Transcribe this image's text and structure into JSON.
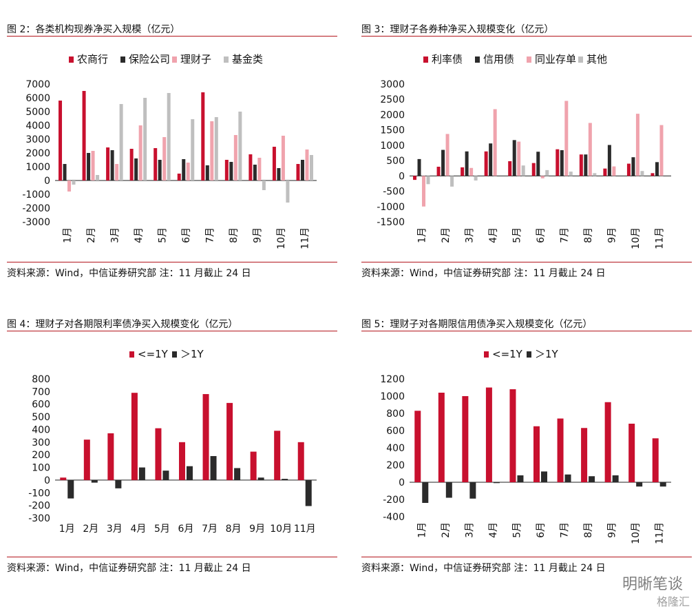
{
  "panels": [
    {
      "title": "图 2：各类机构现券净买入规模（亿元）",
      "source": "资料来源：Wind，中信证券研究部 注：11 月截止 24 日",
      "tick_rotate": true
    },
    {
      "title": "图 3：理财子各券种净买入规模变化（亿元）",
      "source": "资料来源：Wind，中信证券研究部 注：11 月截止 24 日",
      "tick_rotate": true
    },
    {
      "title": "图 4：理财子对各期限利率债净买入规模变化（亿元）",
      "source": "资料来源：Wind，中信证券研究部 注：11 月截止 24 日",
      "tick_rotate": false
    },
    {
      "title": "图 5：理财子对各期限信用债净买入规模变化（亿元）",
      "source": "资料来源：Wind，中信证券研究部 注：11 月截止 24 日",
      "tick_rotate": true
    }
  ],
  "chart_data": [
    {
      "type": "bar",
      "categories": [
        "1月",
        "2月",
        "3月",
        "4月",
        "5月",
        "6月",
        "7月",
        "8月",
        "9月",
        "10月",
        "11月"
      ],
      "series": [
        {
          "name": "农商行",
          "color": "#c8102e",
          "values": [
            5800,
            6500,
            2400,
            2300,
            2350,
            500,
            6400,
            1500,
            1900,
            2450,
            1200
          ]
        },
        {
          "name": "保险公司",
          "color": "#2b2b2b",
          "values": [
            1200,
            2000,
            2200,
            1600,
            1500,
            1550,
            1100,
            1350,
            1150,
            900,
            1500
          ]
        },
        {
          "name": "理财子",
          "color": "#f0a3ad",
          "values": [
            -800,
            2150,
            1200,
            4000,
            3150,
            1300,
            4300,
            3300,
            1650,
            3250,
            2250
          ]
        },
        {
          "name": "基金类",
          "color": "#bfbfbf",
          "values": [
            -300,
            400,
            5550,
            6000,
            6350,
            4450,
            4600,
            5000,
            -700,
            -1600,
            1850
          ]
        }
      ],
      "ylim": [
        -3000,
        7000
      ],
      "yticks": [
        -3000,
        -2000,
        -1000,
        0,
        1000,
        2000,
        3000,
        4000,
        5000,
        6000,
        7000
      ],
      "legend": "top"
    },
    {
      "type": "bar",
      "categories": [
        "1月",
        "2月",
        "3月",
        "4月",
        "5月",
        "6月",
        "7月",
        "8月",
        "9月",
        "10月",
        "11月"
      ],
      "series": [
        {
          "name": "利率债",
          "color": "#c8102e",
          "values": [
            -130,
            300,
            280,
            800,
            480,
            420,
            870,
            700,
            240,
            400,
            90
          ]
        },
        {
          "name": "信用债",
          "color": "#2b2b2b",
          "values": [
            550,
            850,
            800,
            1060,
            1170,
            790,
            840,
            700,
            1010,
            610,
            450
          ]
        },
        {
          "name": "同业存单",
          "color": "#f0a3ad",
          "values": [
            -1000,
            1370,
            260,
            2180,
            1120,
            -80,
            2450,
            1730,
            310,
            2030,
            1660
          ]
        },
        {
          "name": "其他",
          "color": "#bfbfbf",
          "values": [
            -270,
            -350,
            -150,
            0,
            340,
            190,
            140,
            90,
            0,
            160,
            0
          ]
        }
      ],
      "ylim": [
        -1500,
        3000
      ],
      "yticks": [
        -1500,
        -1000,
        -500,
        0,
        500,
        1000,
        1500,
        2000,
        2500,
        3000
      ],
      "legend": "top"
    },
    {
      "type": "bar",
      "categories": [
        "1月",
        "2月",
        "3月",
        "4月",
        "5月",
        "6月",
        "7月",
        "8月",
        "9月",
        "10月",
        "11月"
      ],
      "series": [
        {
          "name": "<=1Y",
          "color": "#c8102e",
          "values": [
            20,
            320,
            370,
            690,
            410,
            300,
            680,
            610,
            225,
            390,
            300
          ]
        },
        {
          "name": "＞1Y",
          "color": "#2b2b2b",
          "values": [
            -145,
            -20,
            -65,
            100,
            75,
            110,
            190,
            95,
            20,
            10,
            -205
          ]
        }
      ],
      "ylim": [
        -300,
        800
      ],
      "yticks": [
        -300,
        -200,
        -100,
        0,
        100,
        200,
        300,
        400,
        500,
        600,
        700,
        800
      ],
      "legend": "top"
    },
    {
      "type": "bar",
      "categories": [
        "1月",
        "2月",
        "3月",
        "4月",
        "5月",
        "6月",
        "7月",
        "8月",
        "9月",
        "10月",
        "11月"
      ],
      "series": [
        {
          "name": "<=1Y",
          "color": "#c8102e",
          "values": [
            830,
            1040,
            1000,
            1100,
            1080,
            650,
            740,
            630,
            930,
            680,
            510
          ]
        },
        {
          "name": "＞1Y",
          "color": "#2b2b2b",
          "values": [
            -240,
            -180,
            -190,
            -10,
            80,
            125,
            90,
            70,
            80,
            -50,
            -50
          ]
        }
      ],
      "ylim": [
        -400,
        1200
      ],
      "yticks": [
        -400,
        -200,
        0,
        200,
        400,
        600,
        800,
        1000,
        1200
      ],
      "legend": "top"
    }
  ],
  "watermark": {
    "text": "明晰笔谈",
    "sub": "格隆汇"
  }
}
